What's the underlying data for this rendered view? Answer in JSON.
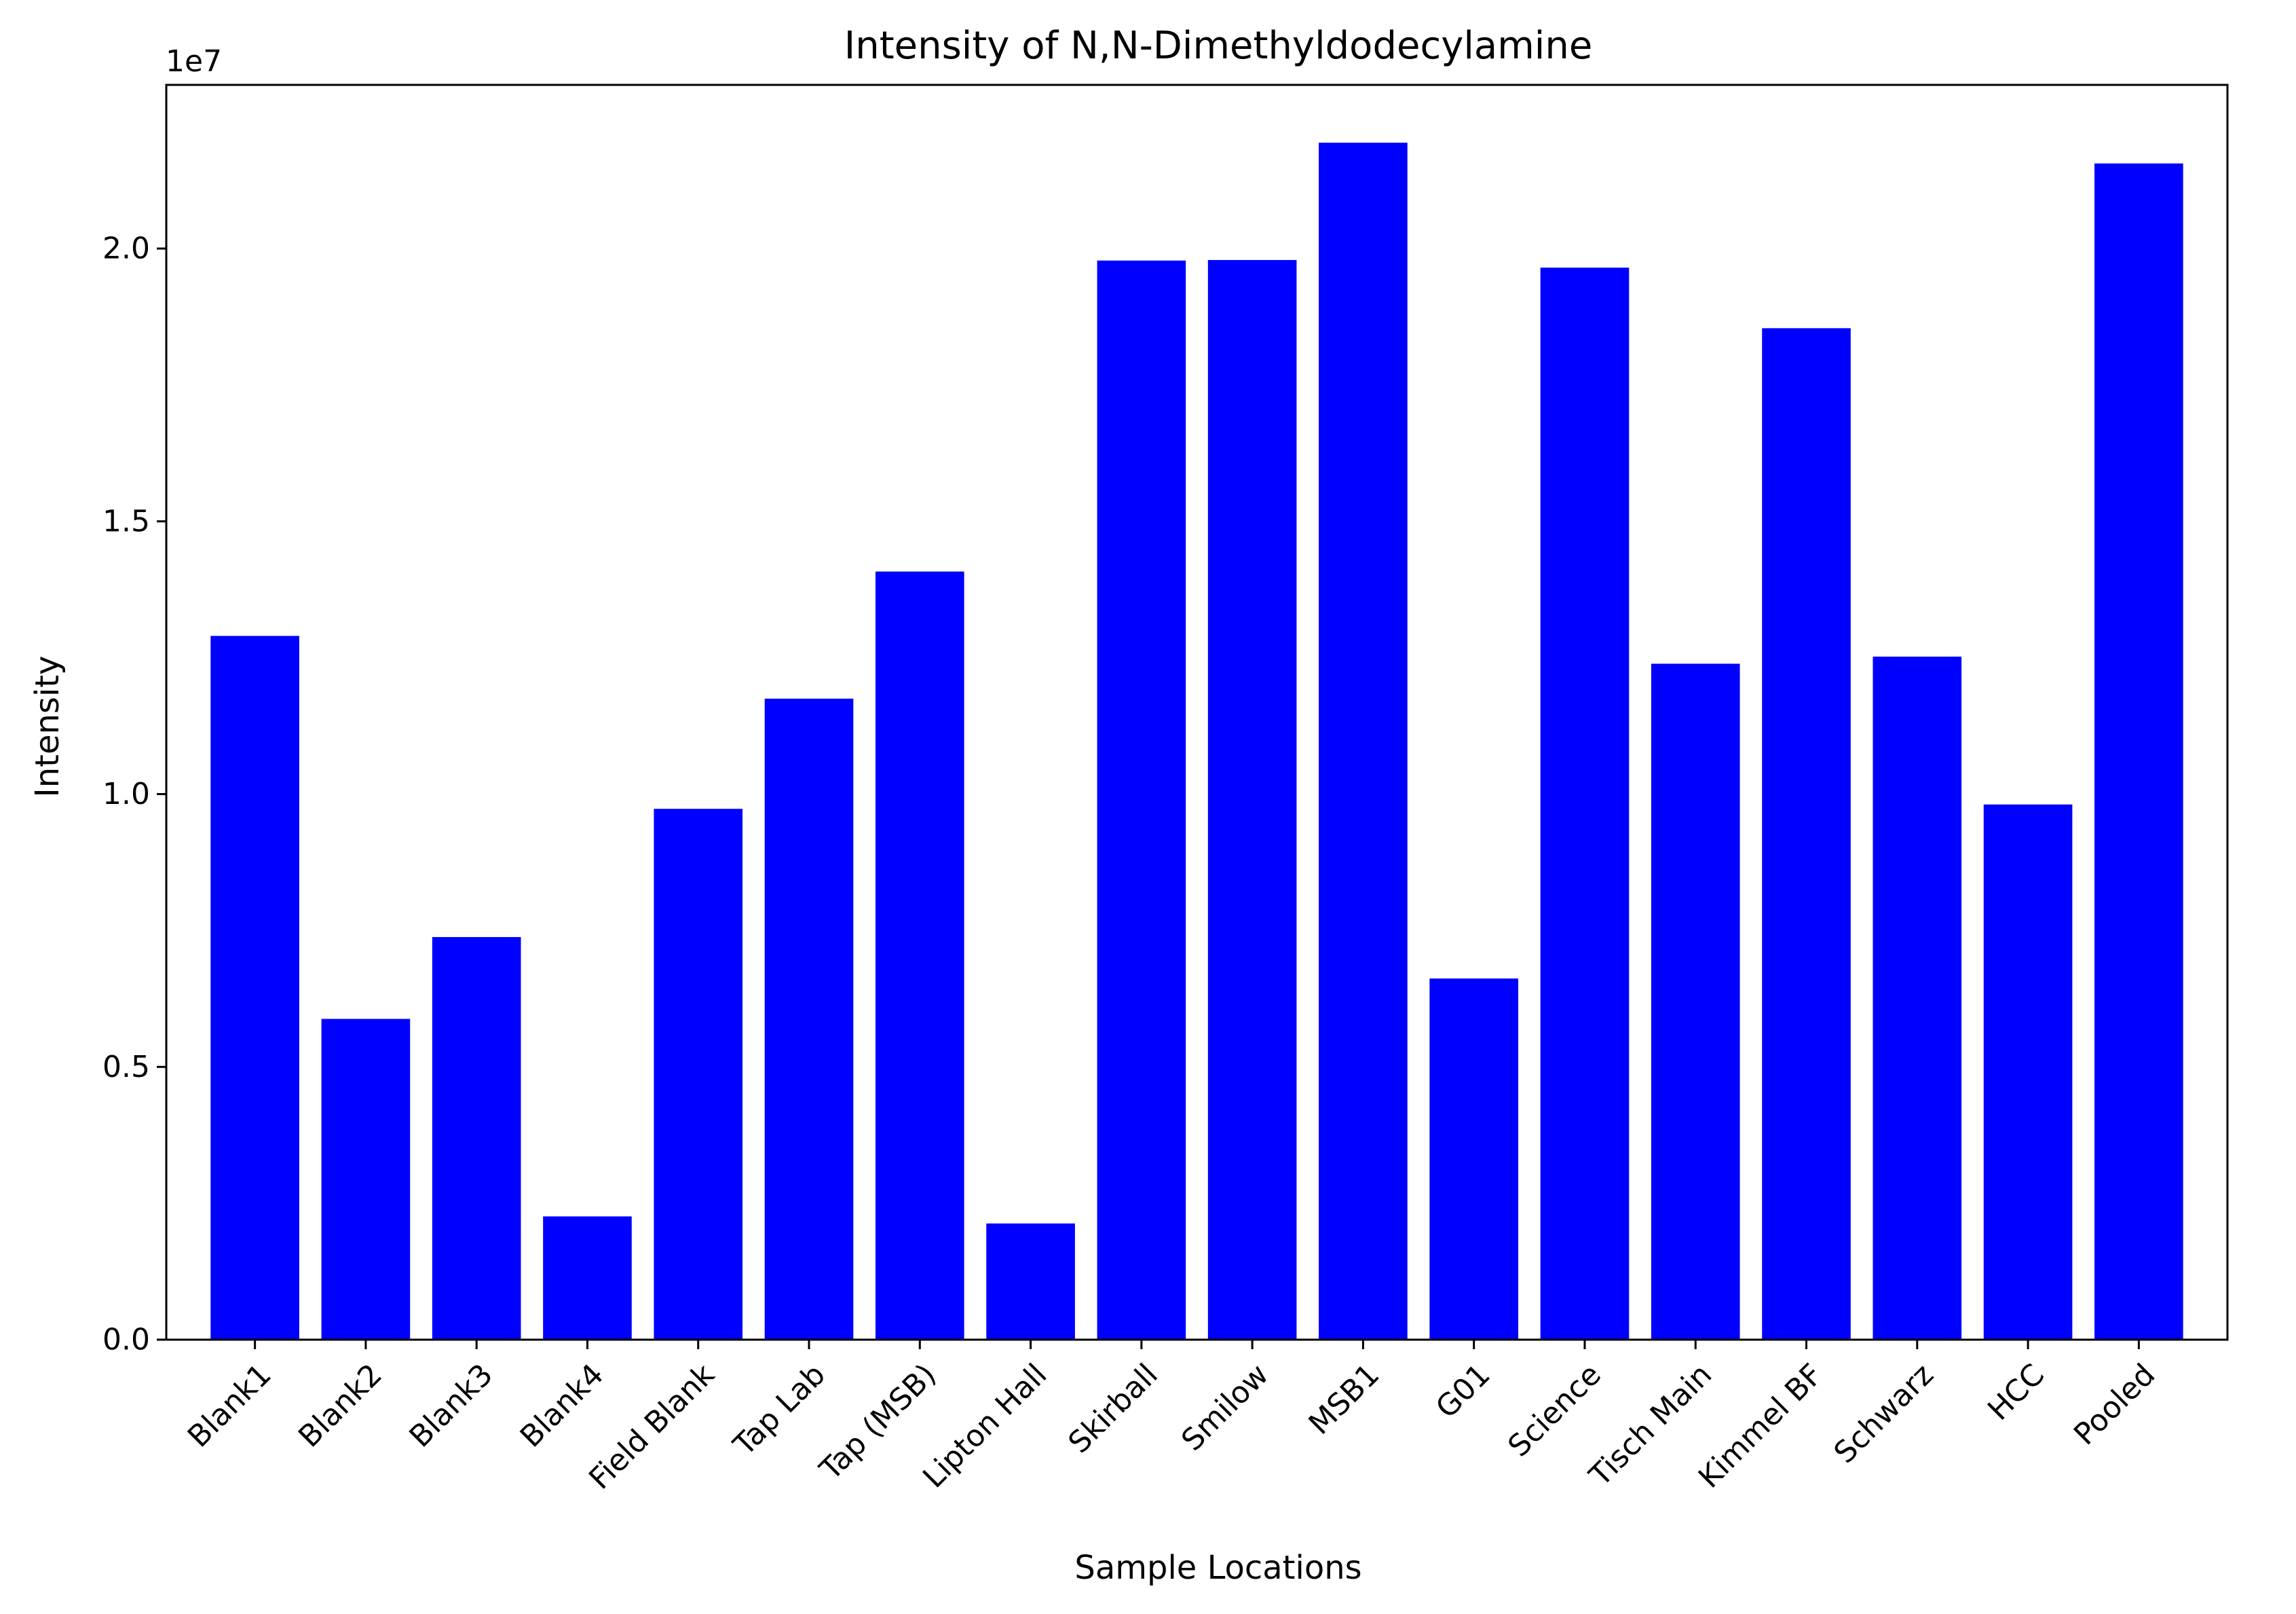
{
  "chart_data": {
    "type": "bar",
    "title": "Intensity of N,N-Dimethyldodecylamine",
    "xlabel": "Sample Locations",
    "ylabel": "Intensity",
    "y_offset_label": "1e7",
    "y_scale": 10000000,
    "ylim": [
      0,
      23000000
    ],
    "yticks": [
      0,
      5000000,
      10000000,
      15000000,
      20000000
    ],
    "ytick_labels": [
      "0.0",
      "0.5",
      "1.0",
      "1.5",
      "2.0"
    ],
    "grid": false,
    "bar_color": "#0000ff",
    "categories": [
      "Blank1",
      "Blank2",
      "Blank3",
      "Blank4",
      "Field Blank",
      "Tap Lab",
      "Tap (MSB)",
      "Lipton Hall",
      "Skirball",
      "Smilow",
      "MSB1",
      "G01",
      "Science",
      "Tisch Main",
      "Kimmel BF",
      "Schwarz",
      "HCC",
      "Pooled"
    ],
    "values": [
      12900000,
      5880000,
      7380000,
      2260000,
      9730000,
      11750000,
      14080000,
      2130000,
      19780000,
      19790000,
      21940000,
      6620000,
      19650000,
      12390000,
      18540000,
      12520000,
      9810000,
      21560000
    ]
  }
}
